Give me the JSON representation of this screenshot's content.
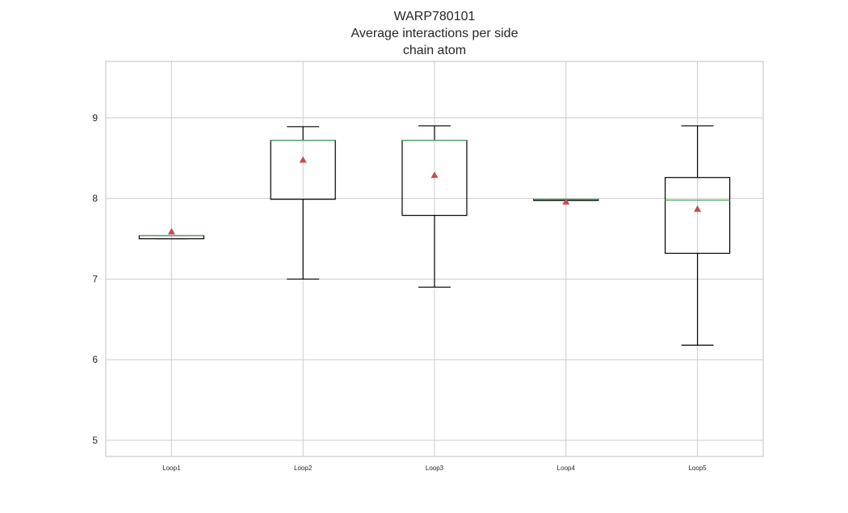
{
  "chart_data": {
    "type": "boxplot",
    "title": "WARP780101\nAverage interactions per side\nchain atom",
    "xlabel": "",
    "ylabel": "",
    "categories": [
      "Loop1",
      "Loop2",
      "Loop3",
      "Loop4",
      "Loop5"
    ],
    "ylim": [
      4.8,
      9.7
    ],
    "yticks": [
      5,
      6,
      7,
      8,
      9
    ],
    "grid": true,
    "legend": "none",
    "boxes": [
      {
        "label": "Loop1",
        "whisker_low": 7.5,
        "q1": 7.5,
        "median": 7.54,
        "q3": 7.54,
        "whisker_high": 7.54,
        "mean": 7.59
      },
      {
        "label": "Loop2",
        "whisker_low": 7.0,
        "q1": 7.99,
        "median": 8.72,
        "q3": 8.72,
        "whisker_high": 8.89,
        "mean": 8.48
      },
      {
        "label": "Loop3",
        "whisker_low": 6.9,
        "q1": 7.79,
        "median": 8.72,
        "q3": 8.72,
        "whisker_high": 8.9,
        "mean": 8.29
      },
      {
        "label": "Loop4",
        "whisker_low": 7.99,
        "q1": 7.99,
        "median": 7.99,
        "q3": 7.99,
        "whisker_high": 7.99,
        "mean": 7.96
      },
      {
        "label": "Loop5",
        "whisker_low": 6.18,
        "q1": 7.32,
        "median": 7.98,
        "q3": 8.26,
        "whisker_high": 8.9,
        "mean": 7.87
      }
    ],
    "colors": {
      "background": "#ffffff",
      "axes_background": "#ffffff",
      "grid": "#cccccc",
      "axes_edge": "#cccccc",
      "box": "#000000",
      "median": "#55a868",
      "mean": "#c44e52",
      "text": "#262626"
    }
  }
}
